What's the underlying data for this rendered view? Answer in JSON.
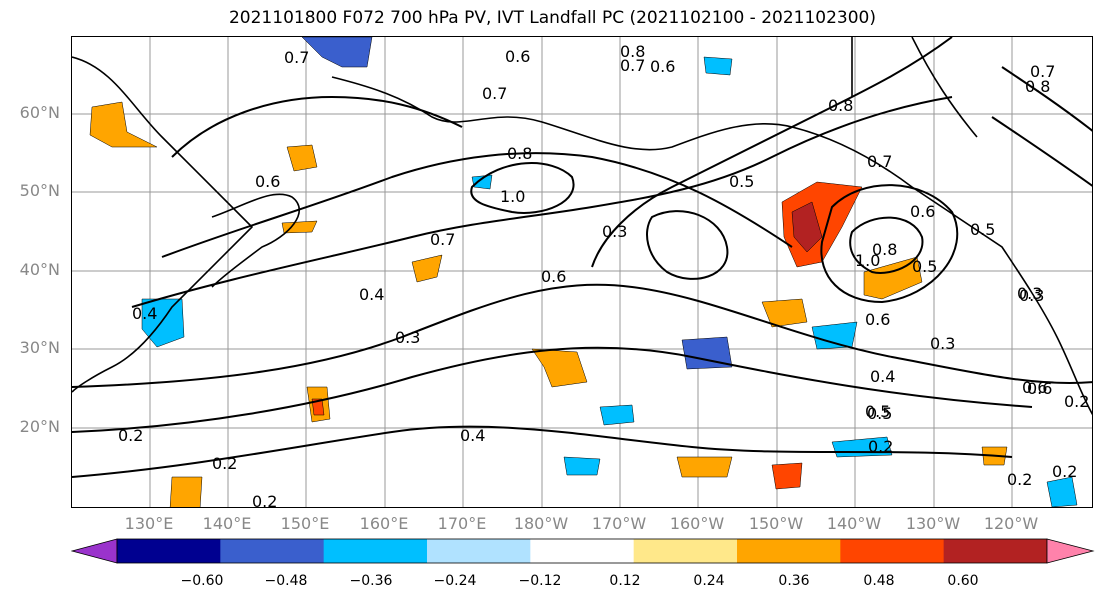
{
  "title": "2021101800 F072 700 hPa PV, IVT Landfall PC (2021102100 - 2021102300)",
  "map": {
    "lat_labels": [
      "60°N",
      "50°N",
      "40°N",
      "30°N",
      "20°N"
    ],
    "lon_labels": [
      "130°E",
      "140°E",
      "150°E",
      "160°E",
      "170°E",
      "180°W",
      "170°W",
      "160°W",
      "150°W",
      "140°W",
      "130°W",
      "120°W"
    ],
    "contour_labels": [
      "0.7",
      "0.6",
      "0.8",
      "0.7",
      "0.6",
      "0.7",
      "0.8",
      "0.7",
      "0.8",
      "0.7",
      "0.6",
      "0.8",
      "1.0",
      "0.5",
      "0.3",
      "0.6",
      "0.7",
      "0.6",
      "0.5",
      "0.4",
      "0.3",
      "0.3",
      "0.8",
      "1.0",
      "0.6",
      "0.5",
      "0.6",
      "0.5",
      "0.4",
      "0.3",
      "0.4",
      "0.5",
      "0.2",
      "0.2",
      "0.2",
      "0.2",
      "0.2",
      "0.6",
      "0.2",
      "0.3",
      "0.4",
      "0.2"
    ]
  },
  "colorbar": {
    "colors": [
      "#9a33cc",
      "#000090",
      "#3a5fcd",
      "#00bfff",
      "#b0e2ff",
      "#ffffff",
      "#ffe88a",
      "#ffa500",
      "#ff4500",
      "#b22222",
      "#ff82ab"
    ],
    "tick_labels": [
      "−0.60",
      "−0.48",
      "−0.36",
      "−0.24",
      "−0.12",
      "0.12",
      "0.24",
      "0.36",
      "0.48",
      "0.60"
    ]
  }
}
